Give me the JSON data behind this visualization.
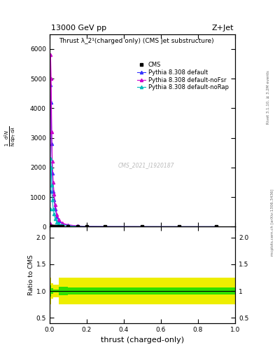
{
  "title_top": "13000 GeV pp",
  "title_right": "Z+Jet",
  "plot_title": "Thrust λ_2¹(charged only) (CMS jet substructure)",
  "ylabel_main_lines": [
    "mathrm d²N",
    "mathrm d p₁ mathrm d λda"
  ],
  "ylabel_ratio": "Ratio to CMS",
  "xlabel": "thrust (charged-only)",
  "watermark": "CMS_2021_I1920187",
  "rivet_label": "Rivet 3.1.10, ≥ 3.2M events",
  "arxiv_label": "mcplots.cern.ch [arXiv:1306.3436]",
  "cms_x": [
    0.003,
    0.006,
    0.009,
    0.012,
    0.015,
    0.02,
    0.025,
    0.03,
    0.04,
    0.05,
    0.07,
    0.1,
    0.15,
    0.2,
    0.3,
    0.5,
    0.7,
    0.9
  ],
  "cms_y": [
    0,
    0,
    0,
    0,
    0,
    0,
    0,
    0,
    0,
    0,
    0,
    0,
    0,
    0,
    0,
    0,
    0,
    0
  ],
  "pd_x": [
    0.003,
    0.006,
    0.009,
    0.012,
    0.015,
    0.02,
    0.025,
    0.03,
    0.04,
    0.05,
    0.07,
    0.1,
    0.15,
    0.2,
    0.3,
    0.5,
    0.7,
    0.9
  ],
  "pd_y": [
    1200,
    4800,
    4200,
    2800,
    1800,
    1200,
    900,
    600,
    350,
    200,
    100,
    55,
    25,
    12,
    5,
    2,
    0.5,
    0.2
  ],
  "pn_x": [
    0.003,
    0.006,
    0.009,
    0.012,
    0.015,
    0.02,
    0.025,
    0.03,
    0.04,
    0.05,
    0.07,
    0.1,
    0.15,
    0.2,
    0.3,
    0.5,
    0.7,
    0.9
  ],
  "pn_y": [
    100,
    5800,
    5000,
    3200,
    2200,
    1500,
    1100,
    750,
    420,
    240,
    120,
    65,
    30,
    14,
    6,
    2.5,
    0.7,
    0.2
  ],
  "pr_x": [
    0.003,
    0.006,
    0.009,
    0.012,
    0.015,
    0.02,
    0.025,
    0.03,
    0.04,
    0.05,
    0.07,
    0.1,
    0.15,
    0.2,
    0.3,
    0.5,
    0.7,
    0.9
  ],
  "pr_y": [
    600,
    2300,
    2000,
    1400,
    900,
    600,
    430,
    280,
    160,
    95,
    50,
    28,
    13,
    6,
    2.5,
    1,
    0.3,
    0.1
  ],
  "ratio_x_edges": [
    0.0,
    0.005,
    0.01,
    0.02,
    0.05,
    0.1,
    0.2,
    0.3,
    0.5,
    0.7,
    0.9,
    1.0
  ],
  "ratio_green_low": [
    0.6,
    0.9,
    0.95,
    0.97,
    0.92,
    0.93,
    0.93,
    0.93,
    0.93,
    0.93,
    0.93
  ],
  "ratio_green_high": [
    1.4,
    1.1,
    1.05,
    1.03,
    1.08,
    1.07,
    1.07,
    1.07,
    1.07,
    1.07,
    1.07
  ],
  "ratio_yellow_low": [
    0.0,
    0.75,
    0.85,
    0.88,
    0.75,
    0.75,
    0.75,
    0.75,
    0.75,
    0.75,
    0.75
  ],
  "ratio_yellow_high": [
    2.2,
    1.25,
    1.15,
    1.12,
    1.25,
    1.25,
    1.25,
    1.25,
    1.25,
    1.25,
    1.25
  ],
  "color_cms": "#000000",
  "color_default": "#3333ff",
  "color_nofsr": "#cc00cc",
  "color_norap": "#00bbbb",
  "color_green": "#00dd00",
  "color_yellow": "#eeee00",
  "ylim_main": [
    0,
    6500
  ],
  "ylim_ratio": [
    0.4,
    2.2
  ],
  "xlim": [
    0.0,
    1.0
  ],
  "yticks_main": [
    0,
    1000,
    2000,
    3000,
    4000,
    5000,
    6000
  ],
  "yticks_ratio": [
    0.5,
    1.0,
    1.5,
    2.0
  ]
}
